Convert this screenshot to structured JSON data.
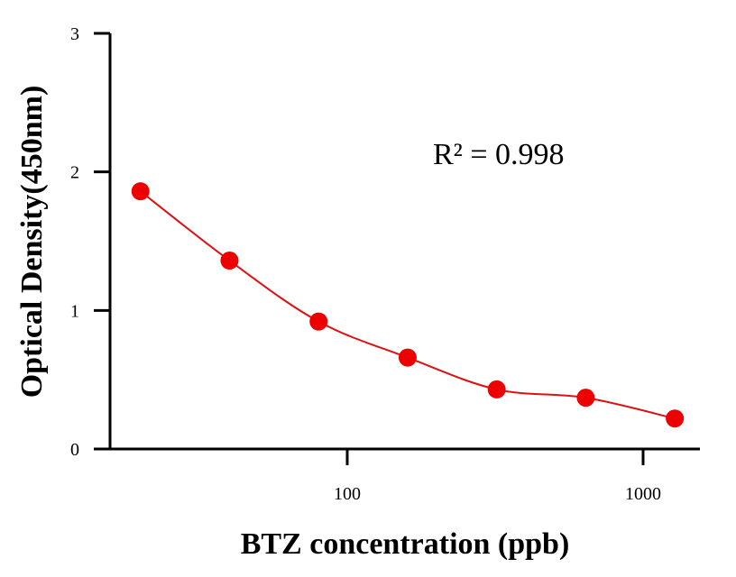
{
  "chart_data": {
    "type": "scatter",
    "title": "",
    "xlabel": "BTZ concentration (ppb)",
    "ylabel": "Optical Density(450nm)",
    "x_scale": "log",
    "xlim": [
      13,
      1600
    ],
    "ylim": [
      0,
      3
    ],
    "x_ticks": [
      100,
      1000
    ],
    "x_tick_labels": [
      "100",
      "1000"
    ],
    "y_ticks": [
      0,
      1,
      2,
      3
    ],
    "y_tick_labels": [
      "0",
      "1",
      "2",
      "3"
    ],
    "grid": false,
    "legend": "none",
    "annotation": "R² = 0.998",
    "series": [
      {
        "points": [
          {
            "x": 20,
            "y": 1.86
          },
          {
            "x": 40,
            "y": 1.36
          },
          {
            "x": 80,
            "y": 0.92
          },
          {
            "x": 160,
            "y": 0.66
          },
          {
            "x": 320,
            "y": 0.43
          },
          {
            "x": 640,
            "y": 0.37
          },
          {
            "x": 1280,
            "y": 0.22
          }
        ],
        "fit": "smooth curve",
        "color": "#ee0000",
        "line_color": "#dd1111"
      }
    ]
  }
}
